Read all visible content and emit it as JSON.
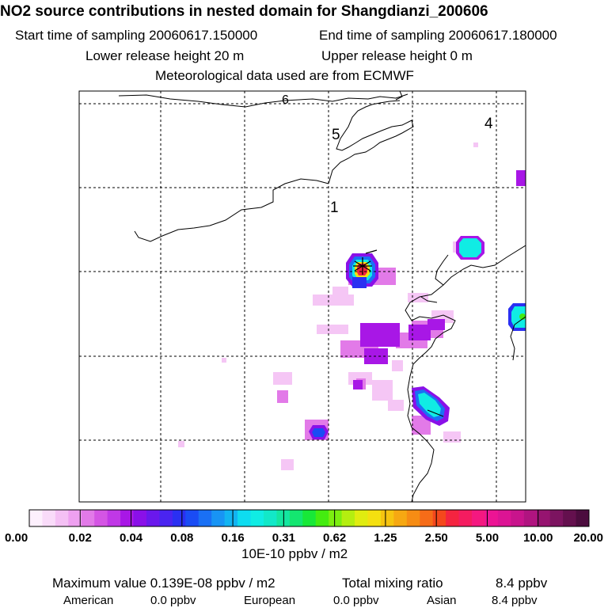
{
  "header": {
    "title": "NO2 source contributions in nested domain for Shangdianzi_200606",
    "start_label": "Start time of sampling 20060617.150000",
    "end_label": "End time of sampling 20060617.180000",
    "lower_label": "Lower release height   20 m",
    "upper_label": "Upper release height    0 m",
    "met_label": "Meteorological data used are from ECMWF"
  },
  "map": {
    "region_labels": [
      "6",
      "5",
      "4",
      "1"
    ],
    "station_marker": "asterisk"
  },
  "colorbar": {
    "tick_labels": [
      "0.00",
      "0.02",
      "0.04",
      "0.08",
      "0.16",
      "0.31",
      "0.62",
      "1.25",
      "2.50",
      "5.00",
      "10.00",
      "20.00"
    ],
    "unit_label": "10E-10 ppbv / m2",
    "colors": [
      "#fdf0fd",
      "#f9dbf9",
      "#f4c0f4",
      "#eea0f0",
      "#e27ae8",
      "#d455e4",
      "#c038e6",
      "#a817e6",
      "#8a10e8",
      "#6a18ec",
      "#4a24f0",
      "#2a30f2",
      "#1a4cf4",
      "#1a70f4",
      "#1894f4",
      "#12b4f2",
      "#0edcf0",
      "#10ece4",
      "#12e8c8",
      "#14e6a0",
      "#14e670",
      "#18e838",
      "#44ec10",
      "#7cee10",
      "#b4ee10",
      "#e0ec10",
      "#f4e010",
      "#f6c410",
      "#f6a812",
      "#f68c14",
      "#f66c18",
      "#f4481c",
      "#f42440",
      "#f41c60",
      "#f41880",
      "#ec1494",
      "#dc1494",
      "#c8148c",
      "#b01480",
      "#961470",
      "#7c1460",
      "#64104e",
      "#4c0c3e"
    ]
  },
  "chart_data": {
    "type": "heatmap",
    "title": "NO2 source contributions in nested domain for Shangdianzi_200606",
    "unit": "10E-10 ppbv / m2",
    "color_scale_ticks": [
      0.0,
      0.02,
      0.04,
      0.08,
      0.16,
      0.31,
      0.62,
      1.25,
      2.5,
      5.0,
      10.0,
      20.0
    ],
    "maximum": "0.139E-08 ppbv / m2",
    "total_mixing_ratio_ppbv": 8.4,
    "contributions_ppbv": {
      "American": 0.0,
      "European": 0.0,
      "Asian": 8.4
    }
  },
  "footer": {
    "max_label": "Maximum value  0.139E-08 ppbv / m2",
    "total_label": "Total mixing ratio",
    "total_value": "8.4 ppbv",
    "american_label": "American",
    "american_value": "0.0 ppbv",
    "european_label": "European",
    "european_value": "0.0 ppbv",
    "asian_label": "Asian",
    "asian_value": "8.4 ppbv"
  }
}
